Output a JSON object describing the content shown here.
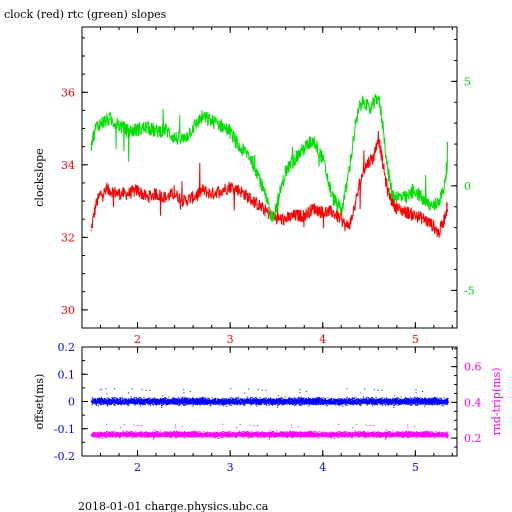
{
  "header": {
    "title": "clock (red) rtc (green) slopes"
  },
  "footer": {
    "caption": "2018-01-01 charge.physics.ubc.ca"
  },
  "colors": {
    "clock": "#ff0000",
    "rtc": "#00e000",
    "offset": "#0000ff",
    "rndtrip": "#ff00ff",
    "axis": "#000000"
  },
  "chart_data": [
    {
      "type": "line",
      "title": "clock (red) rtc (green) slopes",
      "ylabel": "clockslope",
      "xlim": [
        1.4,
        5.45
      ],
      "ylim": [
        29.5,
        37.8
      ],
      "y2lim": [
        -6.8,
        7.6
      ],
      "xticks": [
        2,
        3,
        4,
        5
      ],
      "yticks": [
        30,
        32,
        34,
        36
      ],
      "y2ticks": [
        -5,
        0,
        5
      ],
      "grid": false,
      "series": [
        {
          "name": "clock",
          "axis": "left",
          "x": [
            1.5,
            1.55,
            1.6,
            1.7,
            1.8,
            1.9,
            2.0,
            2.1,
            2.2,
            2.3,
            2.4,
            2.5,
            2.6,
            2.7,
            2.8,
            2.9,
            3.0,
            3.1,
            3.2,
            3.3,
            3.4,
            3.45,
            3.5,
            3.6,
            3.7,
            3.8,
            3.9,
            4.0,
            4.1,
            4.2,
            4.25,
            4.3,
            4.35,
            4.4,
            4.45,
            4.5,
            4.55,
            4.6,
            4.65,
            4.7,
            4.75,
            4.8,
            4.9,
            5.0,
            5.1,
            5.2,
            5.25,
            5.3,
            5.35
          ],
          "values": [
            32.2,
            32.9,
            33.2,
            33.3,
            33.2,
            33.2,
            33.3,
            33.1,
            33.2,
            33.1,
            33.2,
            33.0,
            33.1,
            33.3,
            33.2,
            33.3,
            33.4,
            33.3,
            33.1,
            32.9,
            32.7,
            32.6,
            32.5,
            32.5,
            32.6,
            32.6,
            32.8,
            32.7,
            32.7,
            32.5,
            32.3,
            32.4,
            32.9,
            33.5,
            33.9,
            34.1,
            34.2,
            34.8,
            34.0,
            33.3,
            33.0,
            32.8,
            32.7,
            32.6,
            32.5,
            32.3,
            32.1,
            32.4,
            32.9
          ]
        },
        {
          "name": "rtc",
          "axis": "right",
          "x": [
            1.5,
            1.55,
            1.6,
            1.7,
            1.8,
            1.9,
            2.0,
            2.1,
            2.2,
            2.3,
            2.4,
            2.5,
            2.6,
            2.7,
            2.8,
            2.9,
            3.0,
            3.1,
            3.2,
            3.3,
            3.4,
            3.45,
            3.5,
            3.6,
            3.7,
            3.8,
            3.9,
            4.0,
            4.1,
            4.2,
            4.25,
            4.3,
            4.35,
            4.4,
            4.45,
            4.5,
            4.55,
            4.6,
            4.65,
            4.7,
            4.75,
            4.8,
            4.9,
            5.0,
            5.1,
            5.2,
            5.25,
            5.3,
            5.35
          ],
          "values": [
            2.0,
            2.8,
            3.0,
            3.2,
            2.9,
            2.6,
            2.7,
            2.8,
            2.6,
            2.7,
            2.3,
            2.2,
            2.8,
            3.3,
            3.1,
            2.9,
            2.6,
            1.8,
            1.5,
            0.6,
            -0.8,
            -1.5,
            -1.0,
            0.7,
            1.3,
            1.8,
            2.2,
            1.3,
            -0.5,
            -1.2,
            -0.2,
            1.2,
            2.8,
            3.8,
            4.1,
            3.6,
            3.9,
            4.3,
            2.9,
            0.8,
            -0.4,
            -0.5,
            -0.6,
            -0.2,
            -0.8,
            -1.0,
            -0.7,
            -0.3,
            1.2
          ]
        }
      ]
    },
    {
      "type": "scatter",
      "ylabel": "offset(ms)",
      "y2label": "rnd-trip(ms)",
      "xlim": [
        1.4,
        5.45
      ],
      "ylim": [
        -0.2,
        0.2
      ],
      "y2lim": [
        0.1,
        0.71
      ],
      "xticks": [
        2,
        3,
        4,
        5
      ],
      "yticks": [
        -0.2,
        -0.1,
        0,
        0.1,
        0.2
      ],
      "y2ticks": [
        0.2,
        0.4,
        0.6
      ],
      "grid": false,
      "series": [
        {
          "name": "offset",
          "axis": "left",
          "x": [
            1.5,
            2.0,
            2.5,
            3.0,
            3.5,
            4.0,
            4.5,
            5.0,
            5.35
          ],
          "values": [
            0.0,
            0.0,
            0.0,
            0.0,
            0.0,
            0.0,
            0.0,
            0.0,
            0.0
          ]
        },
        {
          "name": "rnd-trip",
          "axis": "right",
          "x": [
            1.5,
            2.0,
            2.5,
            3.0,
            3.5,
            4.0,
            4.5,
            5.0,
            5.35
          ],
          "values": [
            0.22,
            0.22,
            0.22,
            0.22,
            0.22,
            0.22,
            0.22,
            0.22,
            0.22
          ]
        }
      ]
    }
  ]
}
